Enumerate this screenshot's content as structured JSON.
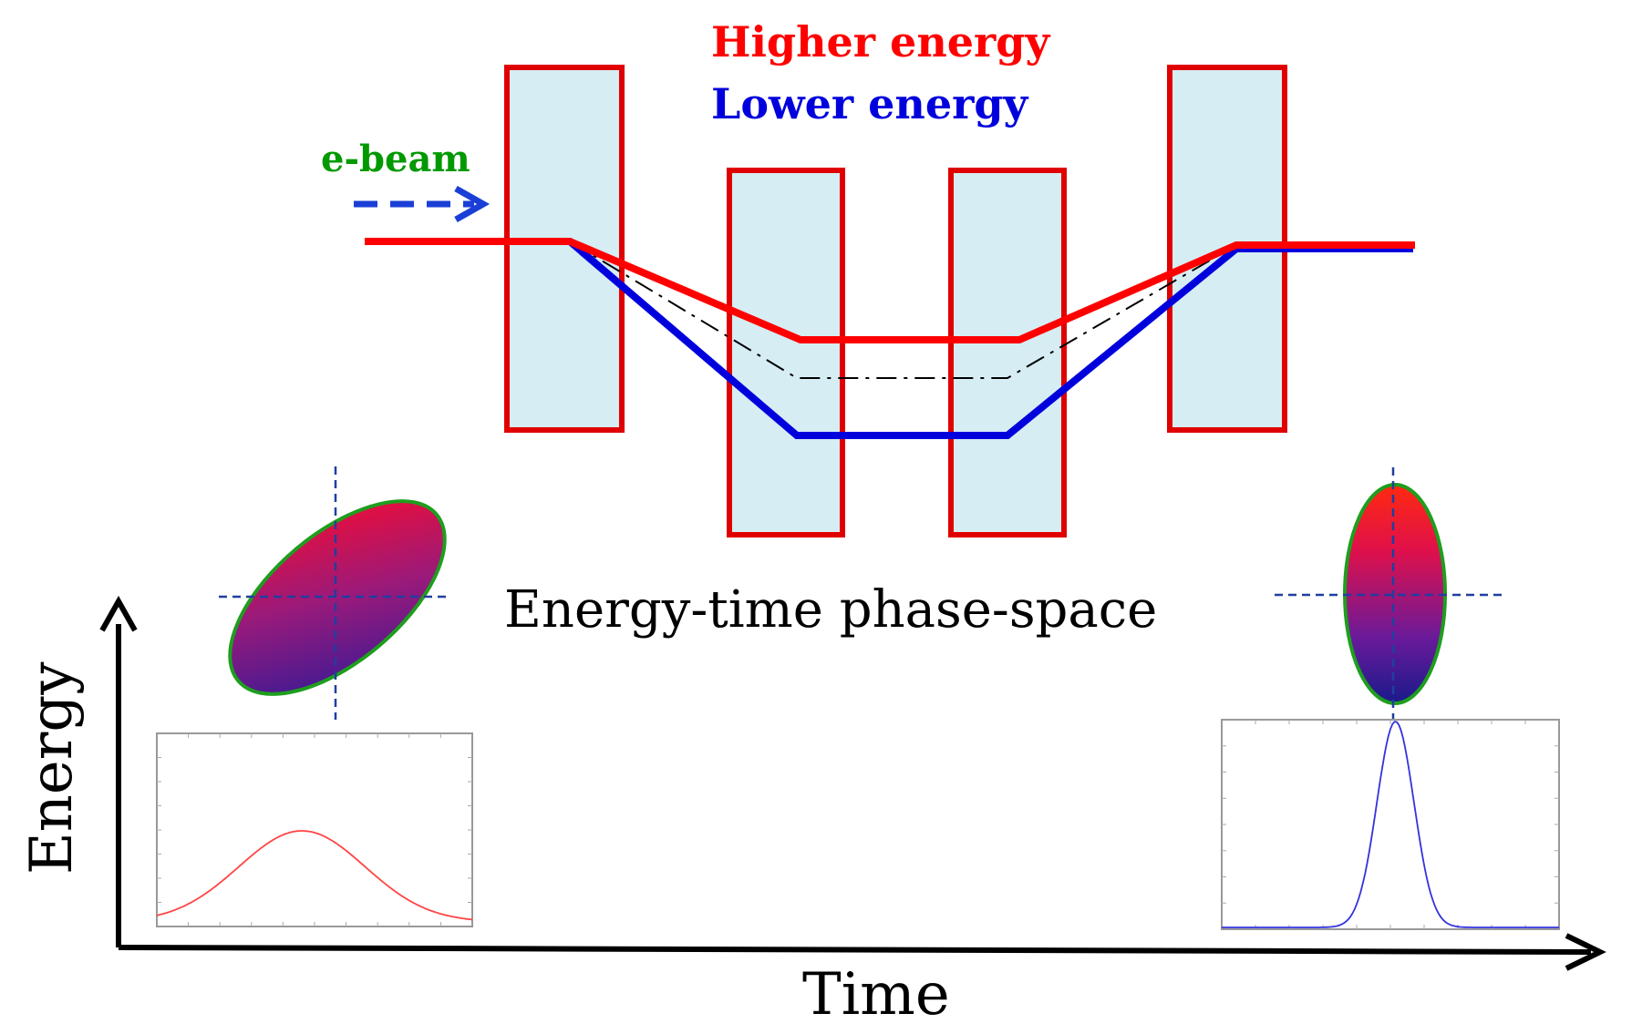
{
  "labels": {
    "higher_energy": "Higher energy",
    "lower_energy": "Lower energy",
    "e_beam": "e-beam",
    "phase_space": "Energy-time phase-space",
    "y_axis": "Energy",
    "x_axis": "Time"
  },
  "colors": {
    "higher": "#ff0000",
    "lower": "#0000dd",
    "beam_label": "#009900",
    "beam_arrow": "#1a3fd6",
    "magnet_fill": "#d6edf4",
    "magnet_stroke": "#e00000",
    "ellipse_edge": "#1e9e1e",
    "crosshair": "#1f3fa0"
  },
  "magnets": [
    {
      "name": "magnet-1",
      "position": "upper"
    },
    {
      "name": "magnet-2",
      "position": "lower"
    },
    {
      "name": "magnet-3",
      "position": "lower"
    },
    {
      "name": "magnet-4",
      "position": "upper"
    }
  ],
  "inset_profiles": [
    {
      "name": "initial-profile",
      "shape": "broad",
      "color": "#ff4444"
    },
    {
      "name": "final-profile",
      "shape": "narrow",
      "color": "#3333dd"
    }
  ]
}
